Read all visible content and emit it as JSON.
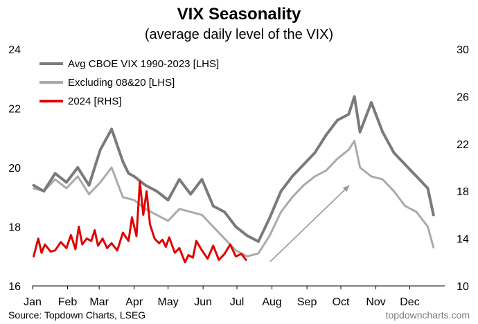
{
  "chart_data": {
    "type": "line",
    "title": "VIX Seasonality",
    "subtitle": "(average daily level of the VIX)",
    "source": "Source: Topdown Charts, LSEG",
    "watermark": "topdowncharts.com",
    "x_labels": [
      "Jan",
      "Feb",
      "Mar",
      "Apr",
      "May",
      "Jun",
      "Jul",
      "Aug",
      "Sep",
      "Oct",
      "Nov",
      "Dec"
    ],
    "y_left": {
      "ticks": [
        "16",
        "18",
        "20",
        "22",
        "24"
      ],
      "lim": [
        16,
        24
      ]
    },
    "y_right": {
      "ticks": [
        "10",
        "14",
        "18",
        "22",
        "26",
        "30"
      ],
      "lim": [
        10,
        30
      ]
    },
    "grid": false,
    "legend_position": "top-left",
    "annotation": "upward arrow from early August to early October",
    "series": [
      {
        "name": "Avg CBOE VIX 1990-2023 [LHS]",
        "axis": "left",
        "color": "#7a7a7a",
        "x": [
          1,
          10,
          20,
          30,
          40,
          50,
          60,
          70,
          80,
          85,
          90,
          100,
          110,
          120,
          130,
          140,
          150,
          160,
          170,
          180,
          190,
          200,
          210,
          220,
          230,
          240,
          250,
          260,
          270,
          280,
          285,
          290,
          300,
          310,
          320,
          330,
          340,
          350,
          355
        ],
        "y": [
          19.4,
          19.2,
          19.8,
          19.5,
          20.0,
          19.4,
          20.6,
          21.3,
          20.2,
          19.8,
          19.7,
          19.4,
          19.2,
          18.9,
          19.6,
          19.1,
          19.6,
          18.7,
          18.5,
          18.0,
          17.7,
          17.5,
          18.3,
          19.2,
          19.7,
          20.1,
          20.5,
          21.1,
          21.6,
          21.8,
          22.4,
          21.2,
          22.2,
          21.2,
          20.5,
          20.1,
          19.7,
          19.3,
          18.4
        ]
      },
      {
        "name": "Excluding 08&20 [LHS]",
        "axis": "left",
        "color": "#aaaaaa",
        "x": [
          1,
          10,
          20,
          30,
          40,
          50,
          60,
          70,
          80,
          90,
          100,
          110,
          120,
          130,
          140,
          150,
          160,
          170,
          180,
          190,
          200,
          210,
          220,
          230,
          240,
          250,
          260,
          270,
          280,
          285,
          290,
          300,
          310,
          320,
          330,
          340,
          350,
          355
        ],
        "y": [
          19.3,
          19.2,
          19.6,
          19.3,
          19.7,
          19.1,
          19.5,
          20.0,
          19.0,
          18.9,
          18.6,
          18.4,
          18.2,
          18.6,
          18.5,
          18.4,
          18.0,
          17.6,
          17.2,
          17.0,
          17.1,
          17.7,
          18.5,
          19.0,
          19.4,
          19.7,
          19.9,
          20.3,
          20.6,
          20.9,
          20.0,
          19.7,
          19.6,
          19.2,
          18.7,
          18.5,
          18.0,
          17.3
        ]
      },
      {
        "name": "2024 [RHS]",
        "axis": "right",
        "color": "#e00000",
        "x": [
          1,
          5,
          8,
          11,
          16,
          20,
          25,
          30,
          34,
          38,
          41,
          44,
          48,
          52,
          55,
          58,
          62,
          66,
          70,
          75,
          80,
          85,
          88,
          92,
          95,
          98,
          101,
          104,
          108,
          112,
          115,
          118,
          121,
          126,
          130,
          135,
          138,
          142,
          145,
          150,
          155,
          160,
          165,
          170,
          175,
          180,
          185,
          189
        ],
        "y": [
          12.5,
          14.0,
          12.8,
          13.5,
          12.9,
          13.0,
          13.7,
          13.2,
          14.3,
          13.1,
          15.0,
          13.5,
          14.0,
          13.8,
          14.7,
          13.4,
          14.0,
          13.2,
          13.6,
          13.0,
          14.5,
          13.8,
          15.8,
          14.2,
          18.8,
          16.0,
          18.0,
          15.2,
          14.0,
          13.6,
          13.9,
          13.3,
          14.1,
          12.8,
          13.2,
          12.0,
          12.6,
          12.4,
          13.8,
          13.0,
          12.3,
          13.4,
          12.2,
          12.7,
          13.5,
          12.5,
          12.7,
          12.2
        ]
      }
    ]
  }
}
